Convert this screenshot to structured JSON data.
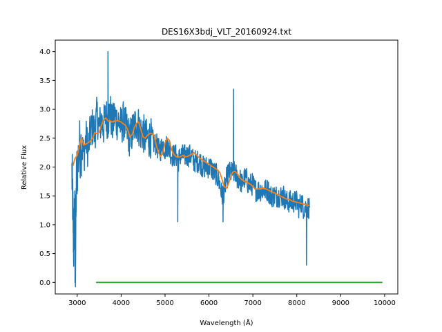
{
  "chart_data": {
    "type": "line",
    "title": "DES16X3bdj_VLT_20160924.txt",
    "xlabel": "Wavelength (Å)",
    "ylabel": "Relative Flux",
    "xlim": [
      2500,
      10300
    ],
    "ylim": [
      -0.2,
      4.2
    ],
    "xticks": [
      3000,
      4000,
      5000,
      6000,
      7000,
      8000,
      9000,
      10000
    ],
    "xtick_labels": [
      "3000",
      "4000",
      "5000",
      "6000",
      "7000",
      "8000",
      "9000",
      "10000"
    ],
    "yticks": [
      0.0,
      0.5,
      1.0,
      1.5,
      2.0,
      2.5,
      3.0,
      3.5,
      4.0
    ],
    "ytick_labels": [
      "0.0",
      "0.5",
      "1.0",
      "1.5",
      "2.0",
      "2.5",
      "3.0",
      "3.5",
      "4.0"
    ],
    "grid": false,
    "legend": "none",
    "series": [
      {
        "color": "#1f77b4",
        "noisy": true,
        "x": [
          2880,
          2900,
          2920,
          2940,
          2960,
          2980,
          3000,
          3050,
          3100,
          3150,
          3200,
          3250,
          3300,
          3350,
          3400,
          3450,
          3500,
          3550,
          3600,
          3650,
          3700,
          3750,
          3800,
          3850,
          3900,
          3950,
          4000,
          4050,
          4100,
          4150,
          4200,
          4250,
          4300,
          4350,
          4400,
          4450,
          4500,
          4550,
          4600,
          4650,
          4700,
          4750,
          4800,
          4850,
          4900,
          4950,
          5000,
          5050,
          5100,
          5150,
          5200,
          5250,
          5300,
          5350,
          5400,
          5450,
          5500,
          5550,
          5600,
          5650,
          5700,
          5750,
          5800,
          5850,
          5900,
          5950,
          6000,
          6050,
          6100,
          6150,
          6200,
          6250,
          6300,
          6350,
          6400,
          6450,
          6500,
          6550,
          6600,
          6650,
          6700,
          6750,
          6800,
          6850,
          6900,
          6950,
          7000,
          7050,
          7100,
          7150,
          7200,
          7250,
          7300,
          7350,
          7400,
          7450,
          7500,
          7550,
          7600,
          7650,
          7700,
          7750,
          7800,
          7850,
          7900,
          7950,
          8000,
          8050,
          8100,
          8150,
          8200,
          8250,
          8290
        ],
        "y": [
          1.9,
          1.3,
          0.6,
          1.4,
          0.3,
          1.7,
          2.0,
          2.3,
          2.4,
          2.2,
          2.5,
          2.3,
          2.6,
          2.7,
          2.6,
          2.9,
          2.7,
          2.8,
          2.7,
          2.9,
          2.8,
          3.0,
          2.7,
          2.9,
          2.8,
          2.8,
          2.7,
          2.8,
          2.7,
          2.6,
          2.5,
          2.6,
          2.7,
          2.8,
          2.7,
          2.6,
          2.6,
          2.5,
          2.5,
          2.5,
          2.5,
          2.4,
          2.4,
          2.3,
          2.3,
          2.4,
          2.3,
          2.4,
          2.3,
          2.2,
          2.2,
          2.2,
          2.1,
          2.2,
          2.2,
          2.2,
          2.2,
          2.2,
          2.2,
          2.1,
          2.1,
          2.1,
          2.1,
          2.0,
          2.0,
          2.0,
          2.0,
          2.0,
          1.9,
          1.9,
          1.8,
          1.7,
          1.5,
          1.6,
          1.8,
          1.9,
          1.9,
          1.9,
          1.9,
          1.8,
          1.8,
          1.7,
          1.8,
          1.8,
          1.7,
          1.7,
          1.7,
          1.6,
          1.6,
          1.6,
          1.6,
          1.6,
          1.6,
          1.6,
          1.5,
          1.5,
          1.5,
          1.5,
          1.5,
          1.5,
          1.5,
          1.4,
          1.4,
          1.4,
          1.4,
          1.4,
          1.4,
          1.3,
          1.4,
          1.3,
          1.3,
          1.3,
          1.3
        ]
      },
      {
        "color": "#ff7f0e",
        "x": [
          2900,
          2950,
          3000,
          3050,
          3100,
          3150,
          3200,
          3250,
          3300,
          3350,
          3400,
          3450,
          3500,
          3550,
          3600,
          3650,
          3700,
          3750,
          3800,
          3850,
          3900,
          3950,
          4000,
          4050,
          4100,
          4150,
          4200,
          4250,
          4300,
          4350,
          4400,
          4450,
          4500,
          4550,
          4600,
          4650,
          4700,
          4750,
          4800,
          4850,
          4900,
          4950,
          5000,
          5050,
          5100,
          5150,
          5200,
          5250,
          5300,
          5350,
          5400,
          5450,
          5500,
          5550,
          5600,
          5650,
          5700,
          5750,
          5800,
          5850,
          5900,
          5950,
          6000,
          6050,
          6100,
          6150,
          6200,
          6250,
          6300,
          6350,
          6400,
          6450,
          6500,
          6550,
          6600,
          6650,
          6700,
          6750,
          6800,
          6850,
          6900,
          6950,
          7000,
          7050,
          7100,
          7150,
          7200,
          7250,
          7300,
          7350,
          7400,
          7450,
          7500,
          7550,
          7600,
          7650,
          7700,
          7750,
          7800,
          7850,
          7900,
          7950,
          8000,
          8050,
          8100,
          8150,
          8200,
          8250,
          8290
        ],
        "y": [
          2.02,
          2.15,
          2.2,
          2.38,
          2.5,
          2.38,
          2.4,
          2.42,
          2.45,
          2.5,
          2.6,
          2.58,
          2.6,
          2.72,
          2.82,
          2.85,
          2.8,
          2.8,
          2.78,
          2.8,
          2.8,
          2.8,
          2.78,
          2.75,
          2.72,
          2.65,
          2.52,
          2.56,
          2.68,
          2.76,
          2.78,
          2.65,
          2.52,
          2.5,
          2.55,
          2.58,
          2.58,
          2.55,
          2.38,
          2.25,
          2.18,
          2.25,
          2.42,
          2.5,
          2.46,
          2.3,
          2.22,
          2.18,
          2.17,
          2.18,
          2.2,
          2.18,
          2.18,
          2.2,
          2.22,
          2.25,
          2.22,
          2.18,
          2.15,
          2.12,
          2.1,
          2.07,
          2.05,
          2.02,
          2.0,
          1.97,
          1.95,
          1.9,
          1.78,
          1.66,
          1.63,
          1.72,
          1.85,
          1.92,
          1.92,
          1.88,
          1.82,
          1.78,
          1.76,
          1.74,
          1.72,
          1.7,
          1.66,
          1.62,
          1.62,
          1.62,
          1.63,
          1.63,
          1.62,
          1.6,
          1.58,
          1.56,
          1.55,
          1.53,
          1.51,
          1.49,
          1.47,
          1.45,
          1.44,
          1.43,
          1.41,
          1.4,
          1.39,
          1.38,
          1.37,
          1.36,
          1.35,
          1.34,
          1.33
        ]
      },
      {
        "color": "#2ca02c",
        "x": [
          3430,
          9950
        ],
        "y": [
          0.0,
          0.0
        ]
      }
    ],
    "annotations": [
      {
        "x": 3700,
        "y": 4.0
      },
      {
        "x": 6560,
        "y": 3.35
      },
      {
        "x": 5290,
        "y": 1.05
      },
      {
        "x": 6320,
        "y": 1.05
      },
      {
        "x": 8220,
        "y": 0.3
      },
      {
        "x": 2950,
        "y": 0.0
      }
    ]
  }
}
